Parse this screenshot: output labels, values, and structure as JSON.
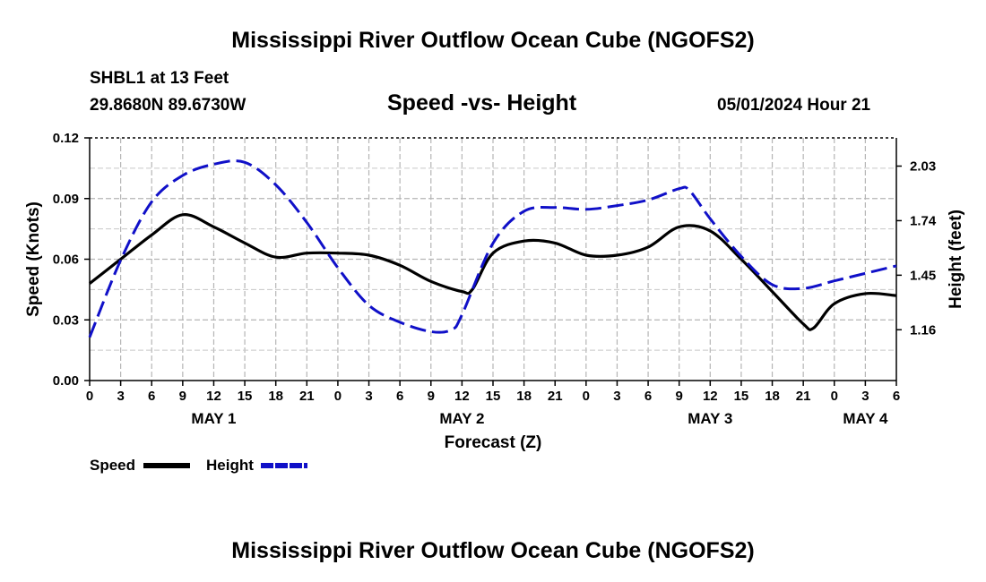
{
  "header": {
    "title": "Mississippi River Outflow Ocean Cube (NGOFS2)",
    "station": "SHBL1 at 13 Feet",
    "coords": "29.8680N  89.6730W",
    "chart_title": "Speed -vs- Height",
    "datetime": "05/01/2024 Hour 21"
  },
  "footer": {
    "title": "Mississippi River Outflow Ocean Cube (NGOFS2)"
  },
  "legend": {
    "speed_label": "Speed",
    "height_label": "Height"
  },
  "chart_data": {
    "type": "line",
    "title": "Speed -vs- Height",
    "xlabel": "Forecast (Z)",
    "ylabel": "Speed (Knots)",
    "y2label": "Height (feet)",
    "ylim": [
      0,
      0.12
    ],
    "y2lim": [
      0.89,
      2.18
    ],
    "xlim": [
      0,
      78
    ],
    "x_tick_values": [
      0,
      3,
      6,
      9,
      12,
      15,
      18,
      21,
      24,
      27,
      30,
      33,
      36,
      39,
      42,
      45,
      48,
      51,
      54,
      57,
      60,
      63,
      66,
      69,
      72,
      75,
      78
    ],
    "x_tick_labels": [
      "0",
      "3",
      "6",
      "9",
      "12",
      "15",
      "18",
      "21",
      "0",
      "3",
      "6",
      "9",
      "12",
      "15",
      "18",
      "21",
      "0",
      "3",
      "6",
      "9",
      "12",
      "15",
      "18",
      "21",
      "0",
      "3",
      "6"
    ],
    "date_labels": [
      {
        "x": 12,
        "label": "MAY 1"
      },
      {
        "x": 36,
        "label": "MAY 2"
      },
      {
        "x": 60,
        "label": "MAY 3"
      },
      {
        "x": 75,
        "label": "MAY 4"
      }
    ],
    "y_ticks": [
      0.0,
      0.03,
      0.06,
      0.09,
      0.12
    ],
    "y_tick_labels": [
      "0.00",
      "0.03",
      "0.06",
      "0.09",
      "0.12"
    ],
    "y2_ticks": [
      1.16,
      1.45,
      1.74,
      2.03
    ],
    "y2_tick_labels": [
      "1.16",
      "1.45",
      "1.74",
      "2.03"
    ],
    "series": [
      {
        "name": "Speed",
        "axis": "left",
        "color": "#000000",
        "style": "solid",
        "x": [
          0,
          3,
          6,
          9,
          12,
          15,
          18,
          21,
          24,
          27,
          30,
          33,
          36,
          37,
          39,
          42,
          45,
          48,
          51,
          54,
          57,
          60,
          63,
          66,
          69,
          70,
          72,
          75,
          78
        ],
        "y": [
          0.048,
          0.06,
          0.072,
          0.082,
          0.076,
          0.068,
          0.061,
          0.063,
          0.063,
          0.062,
          0.057,
          0.049,
          0.044,
          0.045,
          0.063,
          0.069,
          0.068,
          0.062,
          0.062,
          0.066,
          0.076,
          0.074,
          0.06,
          0.044,
          0.028,
          0.026,
          0.038,
          0.043,
          0.042
        ]
      },
      {
        "name": "Height",
        "axis": "right",
        "color": "#0000cc",
        "style": "dashed",
        "x": [
          0,
          3,
          6,
          9,
          12,
          15,
          18,
          21,
          24,
          27,
          30,
          33,
          35,
          36,
          39,
          42,
          45,
          48,
          51,
          54,
          57,
          58,
          60,
          63,
          66,
          69,
          72,
          75,
          78
        ],
        "y": [
          1.12,
          1.53,
          1.84,
          1.98,
          2.04,
          2.05,
          1.93,
          1.73,
          1.49,
          1.29,
          1.2,
          1.15,
          1.16,
          1.24,
          1.62,
          1.79,
          1.81,
          1.8,
          1.82,
          1.85,
          1.91,
          1.9,
          1.75,
          1.55,
          1.4,
          1.38,
          1.42,
          1.46,
          1.5
        ]
      }
    ],
    "grid": true
  }
}
